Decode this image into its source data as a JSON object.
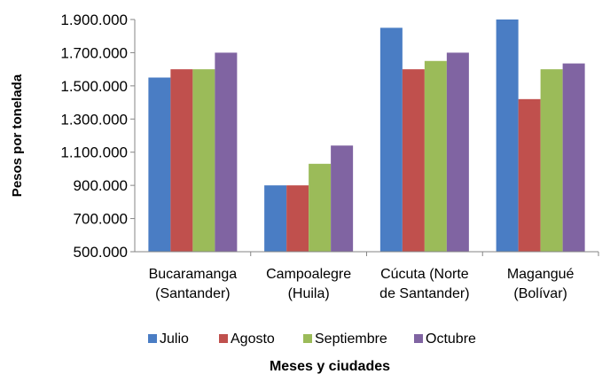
{
  "chart_data": {
    "type": "bar",
    "categories": [
      [
        "Bucaramanga",
        "(Santander)"
      ],
      [
        "Campoalegre",
        "(Huila)"
      ],
      [
        "Cúcuta (Norte",
        "de Santander)"
      ],
      [
        "Magangué",
        "(Bolívar)"
      ]
    ],
    "series": [
      {
        "name": "Julio",
        "color": "#4a7dc4",
        "values": [
          1550000,
          900000,
          1850000,
          1900000
        ]
      },
      {
        "name": "Agosto",
        "color": "#c0504d",
        "values": [
          1600000,
          900000,
          1600000,
          1420000
        ]
      },
      {
        "name": "Septiembre",
        "color": "#9bbb59",
        "values": [
          1600000,
          1030000,
          1650000,
          1600000
        ]
      },
      {
        "name": "Octubre",
        "color": "#8064a2",
        "values": [
          1700000,
          1140000,
          1700000,
          1635000
        ]
      }
    ],
    "ylim": [
      500000,
      1900000
    ],
    "yticks": [
      "500.000",
      "700.000",
      "900.000",
      "1.100.000",
      "1.300.000",
      "1.500.000",
      "1.700.000",
      "1.900.000"
    ],
    "ytick_values": [
      500000,
      700000,
      900000,
      1100000,
      1300000,
      1500000,
      1700000,
      1900000
    ],
    "ylabel": "Pesos por tonelada",
    "xlabel": "Meses y ciudades",
    "legend_position": "bottom",
    "grid": false
  }
}
